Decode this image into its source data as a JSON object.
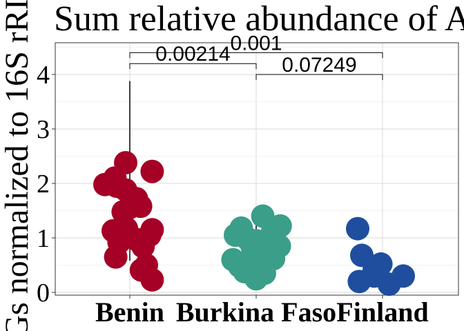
{
  "chart_data": {
    "type": "scatter",
    "title": "Sum relative abundance of A",
    "ylabel": "Gs normalized to 16S rRI",
    "xlabel": "",
    "categories": [
      "Benin",
      "Burkina Faso",
      "Finland"
    ],
    "ylim": [
      0,
      4.5
    ],
    "yticks": [
      0,
      1,
      2,
      3,
      4
    ],
    "grid": true,
    "legend": "none",
    "colors": {
      "Benin": "#a50026",
      "Burkina Faso": "#3a9e88",
      "Finland": "#1f4e9e"
    },
    "series": [
      {
        "category": "Benin",
        "color": "#a50026",
        "points": [
          {
            "xoff": -0.3,
            "y": 1.98
          },
          {
            "xoff": -0.18,
            "y": 2.1
          },
          {
            "xoff": -0.16,
            "y": 1.95
          },
          {
            "xoff": -0.05,
            "y": 2.38
          },
          {
            "xoff": -0.05,
            "y": 1.88
          },
          {
            "xoff": 0.27,
            "y": 2.22
          },
          {
            "xoff": 0.08,
            "y": 1.72
          },
          {
            "xoff": 0.13,
            "y": 1.58
          },
          {
            "xoff": -0.08,
            "y": 1.48
          },
          {
            "xoff": -0.01,
            "y": 1.55
          },
          {
            "xoff": -0.2,
            "y": 1.13
          },
          {
            "xoff": -0.04,
            "y": 1.17
          },
          {
            "xoff": 0.24,
            "y": 1.05
          },
          {
            "xoff": 0.27,
            "y": 1.15
          },
          {
            "xoff": -0.13,
            "y": 0.92
          },
          {
            "xoff": 0.08,
            "y": 0.97
          },
          {
            "xoff": 0.16,
            "y": 0.84
          },
          {
            "xoff": -0.17,
            "y": 0.65
          },
          {
            "xoff": 0.2,
            "y": 0.5
          },
          {
            "xoff": 0.14,
            "y": 0.41
          },
          {
            "xoff": 0.27,
            "y": 0.23
          }
        ],
        "whisker": [
          0.58,
          3.88
        ]
      },
      {
        "category": "Burkina Faso",
        "color": "#3a9e88",
        "points": [
          {
            "xoff": -0.25,
            "y": 1.05
          },
          {
            "xoff": -0.18,
            "y": 1.18
          },
          {
            "xoff": -0.12,
            "y": 1.0
          },
          {
            "xoff": -0.05,
            "y": 0.85
          },
          {
            "xoff": 0.0,
            "y": 0.95
          },
          {
            "xoff": 0.05,
            "y": 0.75
          },
          {
            "xoff": -0.28,
            "y": 0.6
          },
          {
            "xoff": -0.2,
            "y": 0.48
          },
          {
            "xoff": -0.14,
            "y": 0.38
          },
          {
            "xoff": -0.08,
            "y": 0.55
          },
          {
            "xoff": 0.02,
            "y": 0.42
          },
          {
            "xoff": 0.08,
            "y": 0.62
          },
          {
            "xoff": 0.1,
            "y": 0.35
          },
          {
            "xoff": 0.14,
            "y": 0.88
          },
          {
            "xoff": 0.18,
            "y": 1.02
          },
          {
            "xoff": 0.08,
            "y": 1.4
          },
          {
            "xoff": 0.2,
            "y": 1.12
          },
          {
            "xoff": 0.29,
            "y": 1.22
          },
          {
            "xoff": 0.28,
            "y": 0.85
          },
          {
            "xoff": 0.21,
            "y": 0.62
          },
          {
            "xoff": -0.05,
            "y": 0.65
          },
          {
            "xoff": 0.0,
            "y": 0.25
          }
        ],
        "whisker": [
          0.2,
          1.25
        ]
      },
      {
        "category": "Finland",
        "color": "#1f4e9e",
        "points": [
          {
            "xoff": -0.3,
            "y": 1.17
          },
          {
            "xoff": -0.25,
            "y": 0.68
          },
          {
            "xoff": -0.1,
            "y": 0.42
          },
          {
            "xoff": -0.28,
            "y": 0.2
          },
          {
            "xoff": -0.1,
            "y": 0.3
          },
          {
            "xoff": -0.02,
            "y": 0.52
          },
          {
            "xoff": 0.08,
            "y": 0.15
          },
          {
            "xoff": 0.25,
            "y": 0.3
          }
        ]
      }
    ],
    "annotations": [
      {
        "from": "Benin",
        "to": "Burkina Faso",
        "y": 4.2,
        "label": "0.00214"
      },
      {
        "from": "Benin",
        "to": "Finland",
        "y": 4.4,
        "label": "0.001"
      },
      {
        "from": "Burkina Faso",
        "to": "Finland",
        "y": 4.0,
        "label": "0.07249"
      }
    ]
  }
}
